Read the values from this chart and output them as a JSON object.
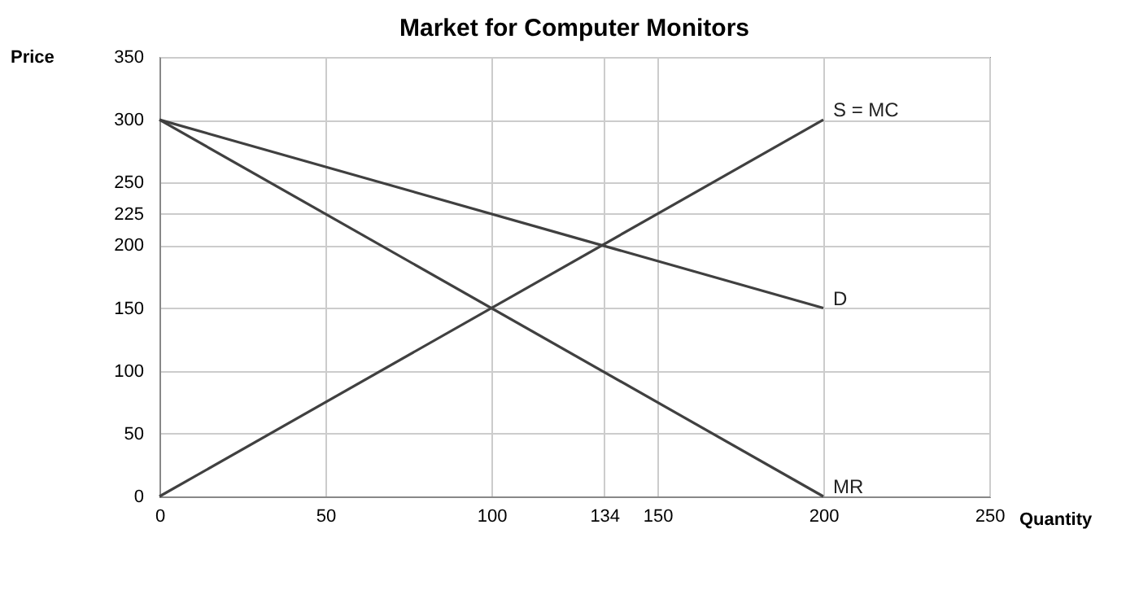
{
  "chart_data": {
    "type": "line",
    "title": "Market for Computer Monitors",
    "xlabel": "Quantity",
    "ylabel": "Price",
    "x": [
      0,
      200
    ],
    "series": [
      {
        "name": "S = MC",
        "color": "#404040",
        "values": [
          0,
          300
        ]
      },
      {
        "name": "D",
        "color": "#404040",
        "values": [
          300,
          150
        ]
      },
      {
        "name": "MR",
        "color": "#404040",
        "values": [
          300,
          0
        ]
      }
    ],
    "xlim": [
      0,
      250
    ],
    "xticks": [
      0,
      50,
      100,
      134,
      150,
      200,
      250
    ],
    "ylim": [
      0,
      350
    ],
    "yticks": [
      0,
      50,
      100,
      150,
      200,
      225,
      250,
      300,
      350
    ],
    "grid": true,
    "legend": false,
    "marker": "none",
    "line_style": "solid"
  }
}
